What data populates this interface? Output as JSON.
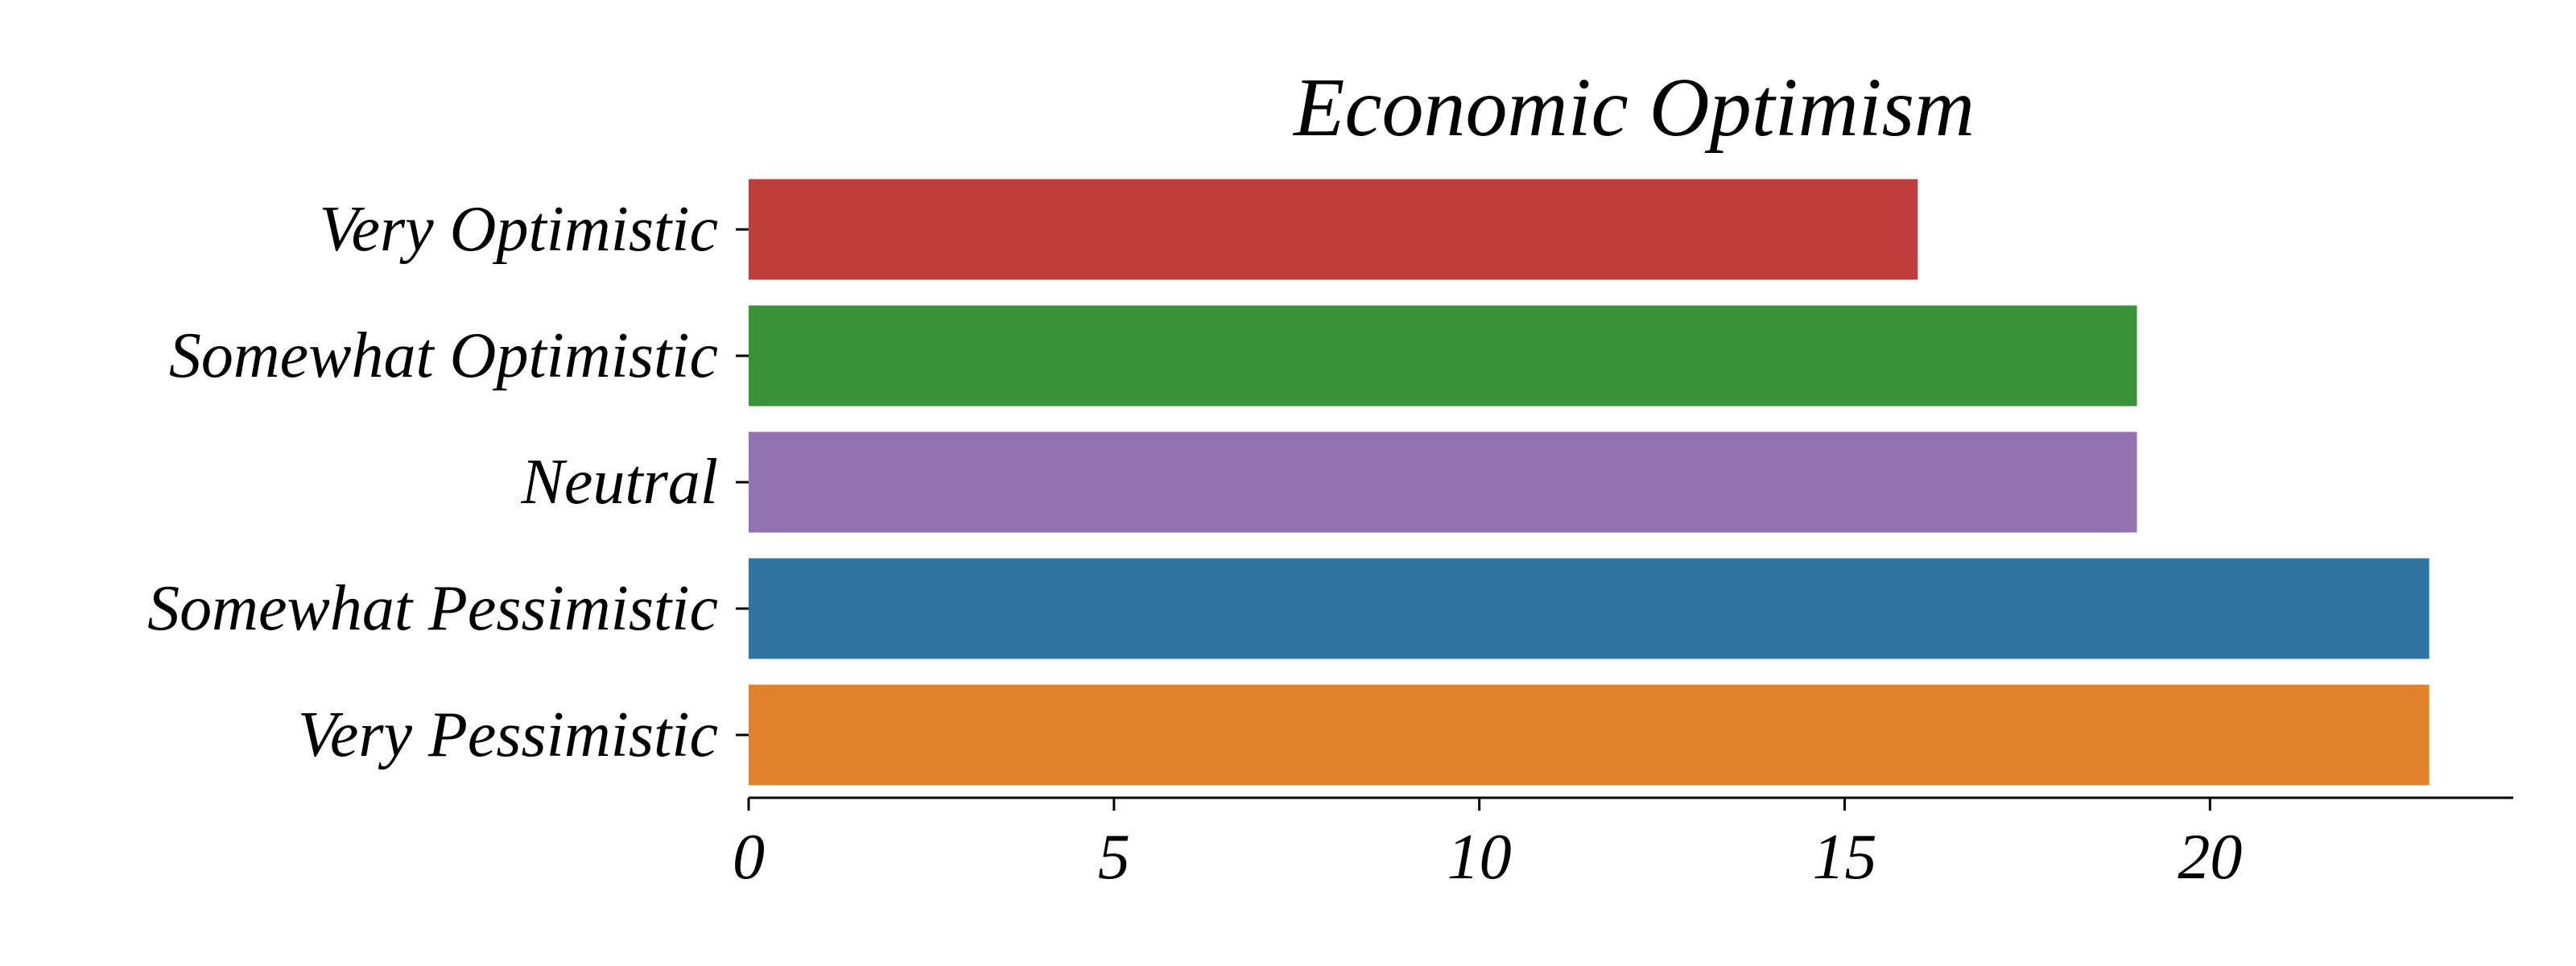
{
  "chart_data": {
    "type": "bar",
    "orientation": "horizontal",
    "title": "Economic Optimism",
    "xlabel": "",
    "ylabel": "",
    "categories": [
      "Very Optimistic",
      "Somewhat Optimistic",
      "Neutral",
      "Somewhat Pessimistic",
      "Very Pessimistic"
    ],
    "values": [
      16,
      19,
      19,
      23,
      23
    ],
    "colors": [
      "#c03d3e",
      "#3a923a",
      "#9372b2",
      "#3274a1",
      "#e1812c"
    ],
    "xlim": [
      0,
      24.15
    ],
    "xticks": [
      0,
      5,
      10,
      15,
      20
    ],
    "xtick_labels": [
      "0",
      "5",
      "10",
      "15",
      "20"
    ],
    "grid": false,
    "legend": "none"
  }
}
